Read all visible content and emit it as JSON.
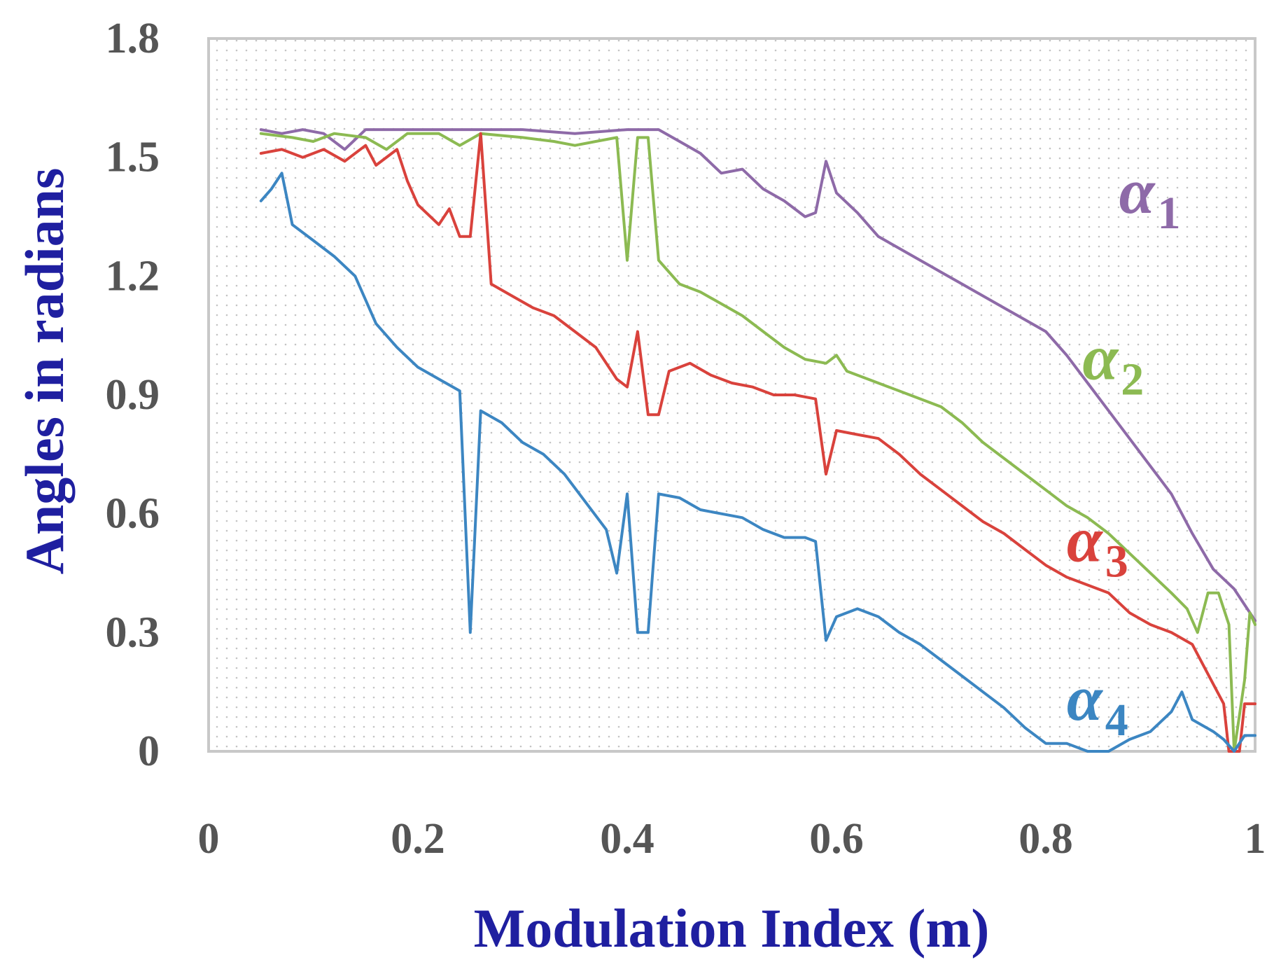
{
  "chart_data": {
    "type": "line",
    "title": "",
    "xlabel": "Modulation Index (m)",
    "ylabel": "Angles in radians",
    "xlim": [
      0,
      1
    ],
    "ylim": [
      0,
      1.8
    ],
    "x_ticks": [
      "0",
      "0.2",
      "0.4",
      "0.6",
      "0.8",
      "1"
    ],
    "y_ticks": [
      "0",
      "0.3",
      "0.6",
      "0.9",
      "1.2",
      "1.5",
      "1.8"
    ],
    "grid": "dotted",
    "colors": {
      "axis_title": "#1f1fa0",
      "tick": "#555555",
      "plot_border": "#c8c8c8"
    },
    "series": [
      {
        "name": "α1",
        "symbol": "α",
        "subscript": "1",
        "color": "#8e6aa8",
        "points": [
          [
            0.05,
            1.57
          ],
          [
            0.07,
            1.56
          ],
          [
            0.09,
            1.57
          ],
          [
            0.11,
            1.56
          ],
          [
            0.13,
            1.52
          ],
          [
            0.15,
            1.57
          ],
          [
            0.2,
            1.57
          ],
          [
            0.3,
            1.57
          ],
          [
            0.35,
            1.56
          ],
          [
            0.4,
            1.57
          ],
          [
            0.43,
            1.57
          ],
          [
            0.45,
            1.54
          ],
          [
            0.47,
            1.51
          ],
          [
            0.49,
            1.46
          ],
          [
            0.51,
            1.47
          ],
          [
            0.53,
            1.42
          ],
          [
            0.55,
            1.39
          ],
          [
            0.57,
            1.35
          ],
          [
            0.58,
            1.36
          ],
          [
            0.59,
            1.49
          ],
          [
            0.6,
            1.41
          ],
          [
            0.62,
            1.36
          ],
          [
            0.64,
            1.3
          ],
          [
            0.66,
            1.27
          ],
          [
            0.68,
            1.24
          ],
          [
            0.7,
            1.21
          ],
          [
            0.72,
            1.18
          ],
          [
            0.74,
            1.15
          ],
          [
            0.76,
            1.12
          ],
          [
            0.78,
            1.09
          ],
          [
            0.8,
            1.06
          ],
          [
            0.82,
            1.0
          ],
          [
            0.84,
            0.93
          ],
          [
            0.86,
            0.86
          ],
          [
            0.88,
            0.79
          ],
          [
            0.9,
            0.72
          ],
          [
            0.92,
            0.65
          ],
          [
            0.94,
            0.55
          ],
          [
            0.96,
            0.46
          ],
          [
            0.98,
            0.41
          ],
          [
            1.0,
            0.33
          ]
        ]
      },
      {
        "name": "α2",
        "symbol": "α",
        "subscript": "2",
        "color": "#8cba52",
        "points": [
          [
            0.05,
            1.56
          ],
          [
            0.08,
            1.55
          ],
          [
            0.1,
            1.54
          ],
          [
            0.12,
            1.56
          ],
          [
            0.15,
            1.55
          ],
          [
            0.17,
            1.52
          ],
          [
            0.19,
            1.56
          ],
          [
            0.22,
            1.56
          ],
          [
            0.24,
            1.53
          ],
          [
            0.26,
            1.56
          ],
          [
            0.3,
            1.55
          ],
          [
            0.33,
            1.54
          ],
          [
            0.35,
            1.53
          ],
          [
            0.37,
            1.54
          ],
          [
            0.39,
            1.55
          ],
          [
            0.4,
            1.24
          ],
          [
            0.41,
            1.55
          ],
          [
            0.42,
            1.55
          ],
          [
            0.43,
            1.24
          ],
          [
            0.45,
            1.18
          ],
          [
            0.47,
            1.16
          ],
          [
            0.49,
            1.13
          ],
          [
            0.51,
            1.1
          ],
          [
            0.53,
            1.06
          ],
          [
            0.55,
            1.02
          ],
          [
            0.57,
            0.99
          ],
          [
            0.59,
            0.98
          ],
          [
            0.6,
            1.0
          ],
          [
            0.61,
            0.96
          ],
          [
            0.63,
            0.94
          ],
          [
            0.65,
            0.92
          ],
          [
            0.67,
            0.9
          ],
          [
            0.7,
            0.87
          ],
          [
            0.72,
            0.83
          ],
          [
            0.74,
            0.78
          ],
          [
            0.76,
            0.74
          ],
          [
            0.78,
            0.7
          ],
          [
            0.8,
            0.66
          ],
          [
            0.82,
            0.62
          ],
          [
            0.84,
            0.59
          ],
          [
            0.86,
            0.55
          ],
          [
            0.88,
            0.5
          ],
          [
            0.9,
            0.45
          ],
          [
            0.92,
            0.4
          ],
          [
            0.935,
            0.36
          ],
          [
            0.945,
            0.3
          ],
          [
            0.955,
            0.4
          ],
          [
            0.965,
            0.4
          ],
          [
            0.975,
            0.32
          ],
          [
            0.98,
            0.0
          ],
          [
            0.99,
            0.18
          ],
          [
            0.995,
            0.35
          ],
          [
            1.0,
            0.32
          ]
        ]
      },
      {
        "name": "α3",
        "symbol": "α",
        "subscript": "3",
        "color": "#d9423c",
        "points": [
          [
            0.05,
            1.51
          ],
          [
            0.07,
            1.52
          ],
          [
            0.09,
            1.5
          ],
          [
            0.11,
            1.52
          ],
          [
            0.13,
            1.49
          ],
          [
            0.15,
            1.53
          ],
          [
            0.16,
            1.48
          ],
          [
            0.18,
            1.52
          ],
          [
            0.19,
            1.44
          ],
          [
            0.2,
            1.38
          ],
          [
            0.22,
            1.33
          ],
          [
            0.23,
            1.37
          ],
          [
            0.24,
            1.3
          ],
          [
            0.25,
            1.3
          ],
          [
            0.26,
            1.56
          ],
          [
            0.27,
            1.18
          ],
          [
            0.29,
            1.15
          ],
          [
            0.31,
            1.12
          ],
          [
            0.33,
            1.1
          ],
          [
            0.35,
            1.06
          ],
          [
            0.37,
            1.02
          ],
          [
            0.39,
            0.94
          ],
          [
            0.4,
            0.92
          ],
          [
            0.41,
            1.06
          ],
          [
            0.42,
            0.85
          ],
          [
            0.43,
            0.85
          ],
          [
            0.44,
            0.96
          ],
          [
            0.46,
            0.98
          ],
          [
            0.48,
            0.95
          ],
          [
            0.5,
            0.93
          ],
          [
            0.52,
            0.92
          ],
          [
            0.54,
            0.9
          ],
          [
            0.56,
            0.9
          ],
          [
            0.58,
            0.89
          ],
          [
            0.59,
            0.7
          ],
          [
            0.6,
            0.81
          ],
          [
            0.62,
            0.8
          ],
          [
            0.64,
            0.79
          ],
          [
            0.66,
            0.75
          ],
          [
            0.68,
            0.7
          ],
          [
            0.7,
            0.66
          ],
          [
            0.72,
            0.62
          ],
          [
            0.74,
            0.58
          ],
          [
            0.76,
            0.55
          ],
          [
            0.78,
            0.51
          ],
          [
            0.8,
            0.47
          ],
          [
            0.82,
            0.44
          ],
          [
            0.84,
            0.42
          ],
          [
            0.86,
            0.4
          ],
          [
            0.88,
            0.35
          ],
          [
            0.9,
            0.32
          ],
          [
            0.92,
            0.3
          ],
          [
            0.94,
            0.27
          ],
          [
            0.96,
            0.17
          ],
          [
            0.97,
            0.12
          ],
          [
            0.975,
            0.0
          ],
          [
            0.985,
            0.0
          ],
          [
            0.99,
            0.12
          ],
          [
            1.0,
            0.12
          ]
        ]
      },
      {
        "name": "α4",
        "symbol": "α",
        "subscript": "4",
        "color": "#3c86c2",
        "points": [
          [
            0.05,
            1.39
          ],
          [
            0.06,
            1.42
          ],
          [
            0.07,
            1.46
          ],
          [
            0.08,
            1.33
          ],
          [
            0.1,
            1.29
          ],
          [
            0.12,
            1.25
          ],
          [
            0.14,
            1.2
          ],
          [
            0.15,
            1.14
          ],
          [
            0.16,
            1.08
          ],
          [
            0.18,
            1.02
          ],
          [
            0.2,
            0.97
          ],
          [
            0.22,
            0.94
          ],
          [
            0.24,
            0.91
          ],
          [
            0.25,
            0.3
          ],
          [
            0.26,
            0.86
          ],
          [
            0.28,
            0.83
          ],
          [
            0.3,
            0.78
          ],
          [
            0.32,
            0.75
          ],
          [
            0.34,
            0.7
          ],
          [
            0.36,
            0.63
          ],
          [
            0.38,
            0.56
          ],
          [
            0.39,
            0.45
          ],
          [
            0.4,
            0.65
          ],
          [
            0.41,
            0.3
          ],
          [
            0.42,
            0.3
          ],
          [
            0.43,
            0.65
          ],
          [
            0.45,
            0.64
          ],
          [
            0.47,
            0.61
          ],
          [
            0.49,
            0.6
          ],
          [
            0.51,
            0.59
          ],
          [
            0.53,
            0.56
          ],
          [
            0.55,
            0.54
          ],
          [
            0.57,
            0.54
          ],
          [
            0.58,
            0.53
          ],
          [
            0.59,
            0.28
          ],
          [
            0.6,
            0.34
          ],
          [
            0.62,
            0.36
          ],
          [
            0.64,
            0.34
          ],
          [
            0.66,
            0.3
          ],
          [
            0.68,
            0.27
          ],
          [
            0.7,
            0.23
          ],
          [
            0.72,
            0.19
          ],
          [
            0.74,
            0.15
          ],
          [
            0.76,
            0.11
          ],
          [
            0.78,
            0.06
          ],
          [
            0.8,
            0.02
          ],
          [
            0.82,
            0.02
          ],
          [
            0.84,
            0.0
          ],
          [
            0.86,
            0.0
          ],
          [
            0.88,
            0.03
          ],
          [
            0.9,
            0.05
          ],
          [
            0.92,
            0.1
          ],
          [
            0.93,
            0.15
          ],
          [
            0.94,
            0.08
          ],
          [
            0.96,
            0.05
          ],
          [
            0.97,
            0.03
          ],
          [
            0.98,
            0.0
          ],
          [
            0.99,
            0.04
          ],
          [
            1.0,
            0.04
          ]
        ]
      }
    ],
    "annotations": [
      {
        "series": "α1",
        "anchor": [
          0.87,
          1.36
        ]
      },
      {
        "series": "α2",
        "anchor": [
          0.835,
          0.94
        ]
      },
      {
        "series": "α3",
        "anchor": [
          0.82,
          0.48
        ]
      },
      {
        "series": "α4",
        "anchor": [
          0.82,
          0.08
        ]
      }
    ]
  }
}
